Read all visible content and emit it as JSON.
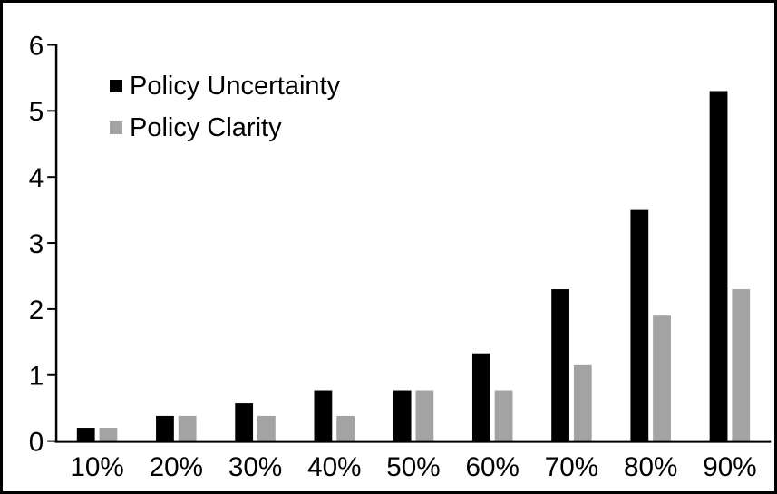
{
  "chart_data": {
    "type": "bar",
    "title": "",
    "xlabel": "",
    "ylabel": "",
    "categories": [
      "10%",
      "20%",
      "30%",
      "40%",
      "50%",
      "60%",
      "70%",
      "80%",
      "90%"
    ],
    "series": [
      {
        "name": "Policy Uncertainty",
        "color": "#000000",
        "values": [
          0.2,
          0.38,
          0.57,
          0.77,
          0.77,
          1.33,
          2.3,
          3.5,
          5.3
        ]
      },
      {
        "name": "Policy Clarity",
        "color": "#a3a3a3",
        "values": [
          0.2,
          0.38,
          0.38,
          0.38,
          0.77,
          0.77,
          1.15,
          1.9,
          2.3
        ]
      }
    ],
    "ylim": [
      0,
      6
    ],
    "yticks": [
      0,
      1,
      2,
      3,
      4,
      5,
      6
    ],
    "grid": false,
    "legend_position": "top-left-inside",
    "axis_color": "#000000",
    "background": "#ffffff",
    "border_color": "#000000"
  }
}
